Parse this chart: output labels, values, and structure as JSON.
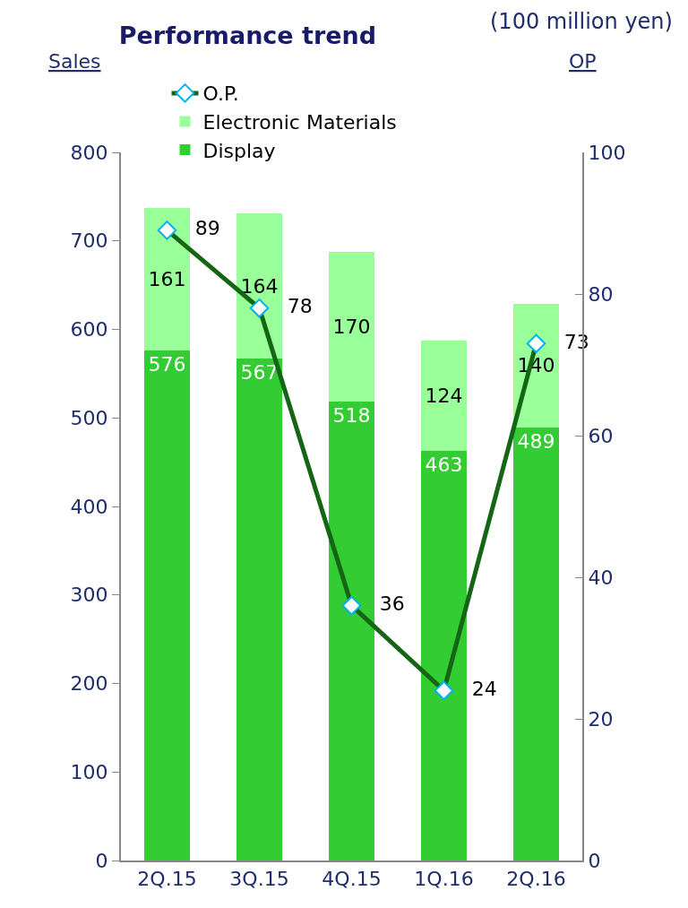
{
  "chart_data": {
    "type": "bar",
    "title": "Performance trend",
    "ylabel": "Sales",
    "y2label": "OP",
    "annotations": [
      "(100 million yen)"
    ],
    "categories": [
      "2Q.15",
      "3Q.15",
      "4Q.15",
      "1Q.16",
      "2Q.16"
    ],
    "stacked": true,
    "series": [
      {
        "name": "Display",
        "color": "#33cc33",
        "values": [
          576,
          567,
          518,
          463,
          489
        ]
      },
      {
        "name": "Electronic Materials",
        "color": "#99ff99",
        "values": [
          161,
          164,
          170,
          124,
          140
        ]
      },
      {
        "name": "O.P.",
        "type": "line",
        "axis": "y2",
        "color": "#146614",
        "marker": "diamond",
        "values": [
          89,
          78,
          36,
          24,
          73
        ]
      }
    ],
    "ylim": [
      0,
      800
    ],
    "yticks": [
      0,
      100,
      200,
      300,
      400,
      500,
      600,
      700,
      800
    ],
    "y2lim": [
      0,
      100
    ],
    "y2ticks": [
      0,
      20,
      40,
      60,
      80,
      100
    ],
    "data_labels": true,
    "grid": false,
    "legend": "top left"
  }
}
